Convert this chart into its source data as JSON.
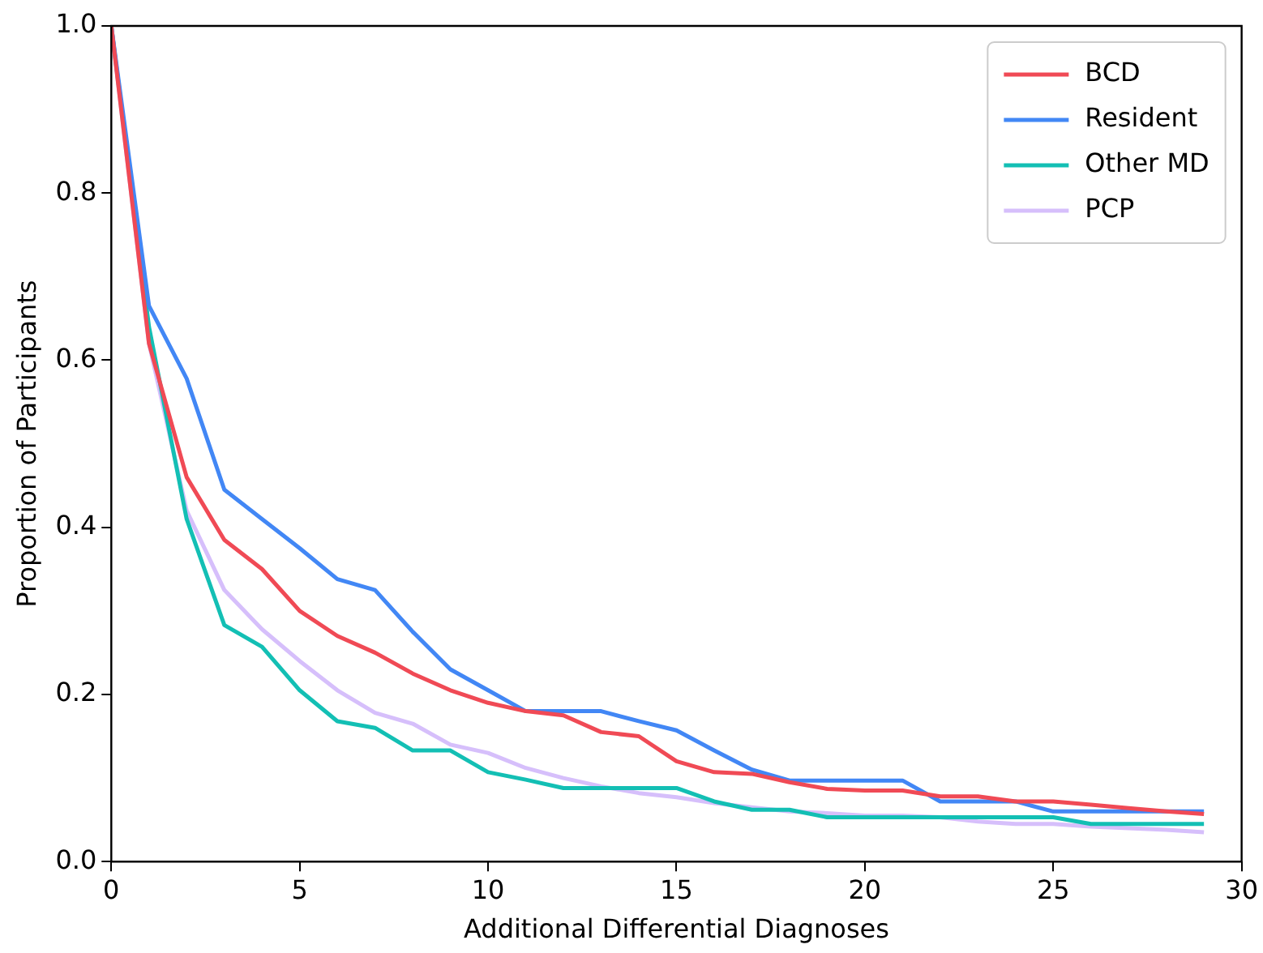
{
  "chart_data": {
    "type": "line",
    "xlabel": "Additional Differential Diagnoses",
    "ylabel": "Proportion of Participants",
    "x": [
      0,
      1,
      2,
      3,
      4,
      5,
      6,
      7,
      8,
      9,
      10,
      11,
      12,
      13,
      14,
      15,
      16,
      17,
      18,
      19,
      20,
      21,
      22,
      23,
      24,
      25,
      26,
      27,
      28,
      29
    ],
    "series": [
      {
        "name": "BCD",
        "color": "#f04a55",
        "values": [
          1.0,
          0.62,
          0.46,
          0.385,
          0.35,
          0.3,
          0.27,
          0.25,
          0.225,
          0.205,
          0.19,
          0.18,
          0.175,
          0.155,
          0.15,
          0.12,
          0.107,
          0.105,
          0.095,
          0.087,
          0.085,
          0.085,
          0.078,
          0.078,
          0.072,
          0.072,
          0.068,
          0.064,
          0.06,
          0.057
        ]
      },
      {
        "name": "Resident",
        "color": "#4287f5",
        "values": [
          1.0,
          0.665,
          0.578,
          0.445,
          0.41,
          0.375,
          0.338,
          0.325,
          0.275,
          0.23,
          0.205,
          0.18,
          0.18,
          0.18,
          0.168,
          0.157,
          0.133,
          0.11,
          0.097,
          0.097,
          0.097,
          0.097,
          0.072,
          0.072,
          0.072,
          0.06,
          0.06,
          0.06,
          0.06,
          0.06
        ]
      },
      {
        "name": "Other MD",
        "color": "#13bfb4",
        "values": [
          1.0,
          0.64,
          0.41,
          0.283,
          0.257,
          0.205,
          0.168,
          0.16,
          0.133,
          0.133,
          0.107,
          0.098,
          0.088,
          0.088,
          0.088,
          0.088,
          0.072,
          0.062,
          0.062,
          0.053,
          0.053,
          0.053,
          0.053,
          0.053,
          0.053,
          0.053,
          0.045,
          0.045,
          0.045,
          0.045
        ]
      },
      {
        "name": "PCP",
        "color": "#d6bffb",
        "values": [
          1.0,
          0.62,
          0.42,
          0.325,
          0.278,
          0.24,
          0.205,
          0.178,
          0.165,
          0.14,
          0.13,
          0.112,
          0.1,
          0.09,
          0.082,
          0.077,
          0.07,
          0.065,
          0.06,
          0.058,
          0.055,
          0.055,
          0.053,
          0.048,
          0.045,
          0.045,
          0.042,
          0.04,
          0.038,
          0.035
        ]
      }
    ],
    "xlim": [
      0,
      30
    ],
    "xticks": [
      0,
      5,
      10,
      15,
      20,
      25,
      30
    ],
    "ylim": [
      0,
      1.0
    ],
    "yticks": [
      {
        "value": 0,
        "label": "0.0"
      },
      {
        "value": 0.2,
        "label": "0.2"
      },
      {
        "value": 0.4,
        "label": "0.4"
      },
      {
        "value": 0.6,
        "label": "0.6"
      },
      {
        "value": 0.8,
        "label": "0.8"
      },
      {
        "value": 1.0,
        "label": "1.0"
      }
    ],
    "grid": false,
    "legend": "top right",
    "marker": "none",
    "line_style": "solid"
  }
}
